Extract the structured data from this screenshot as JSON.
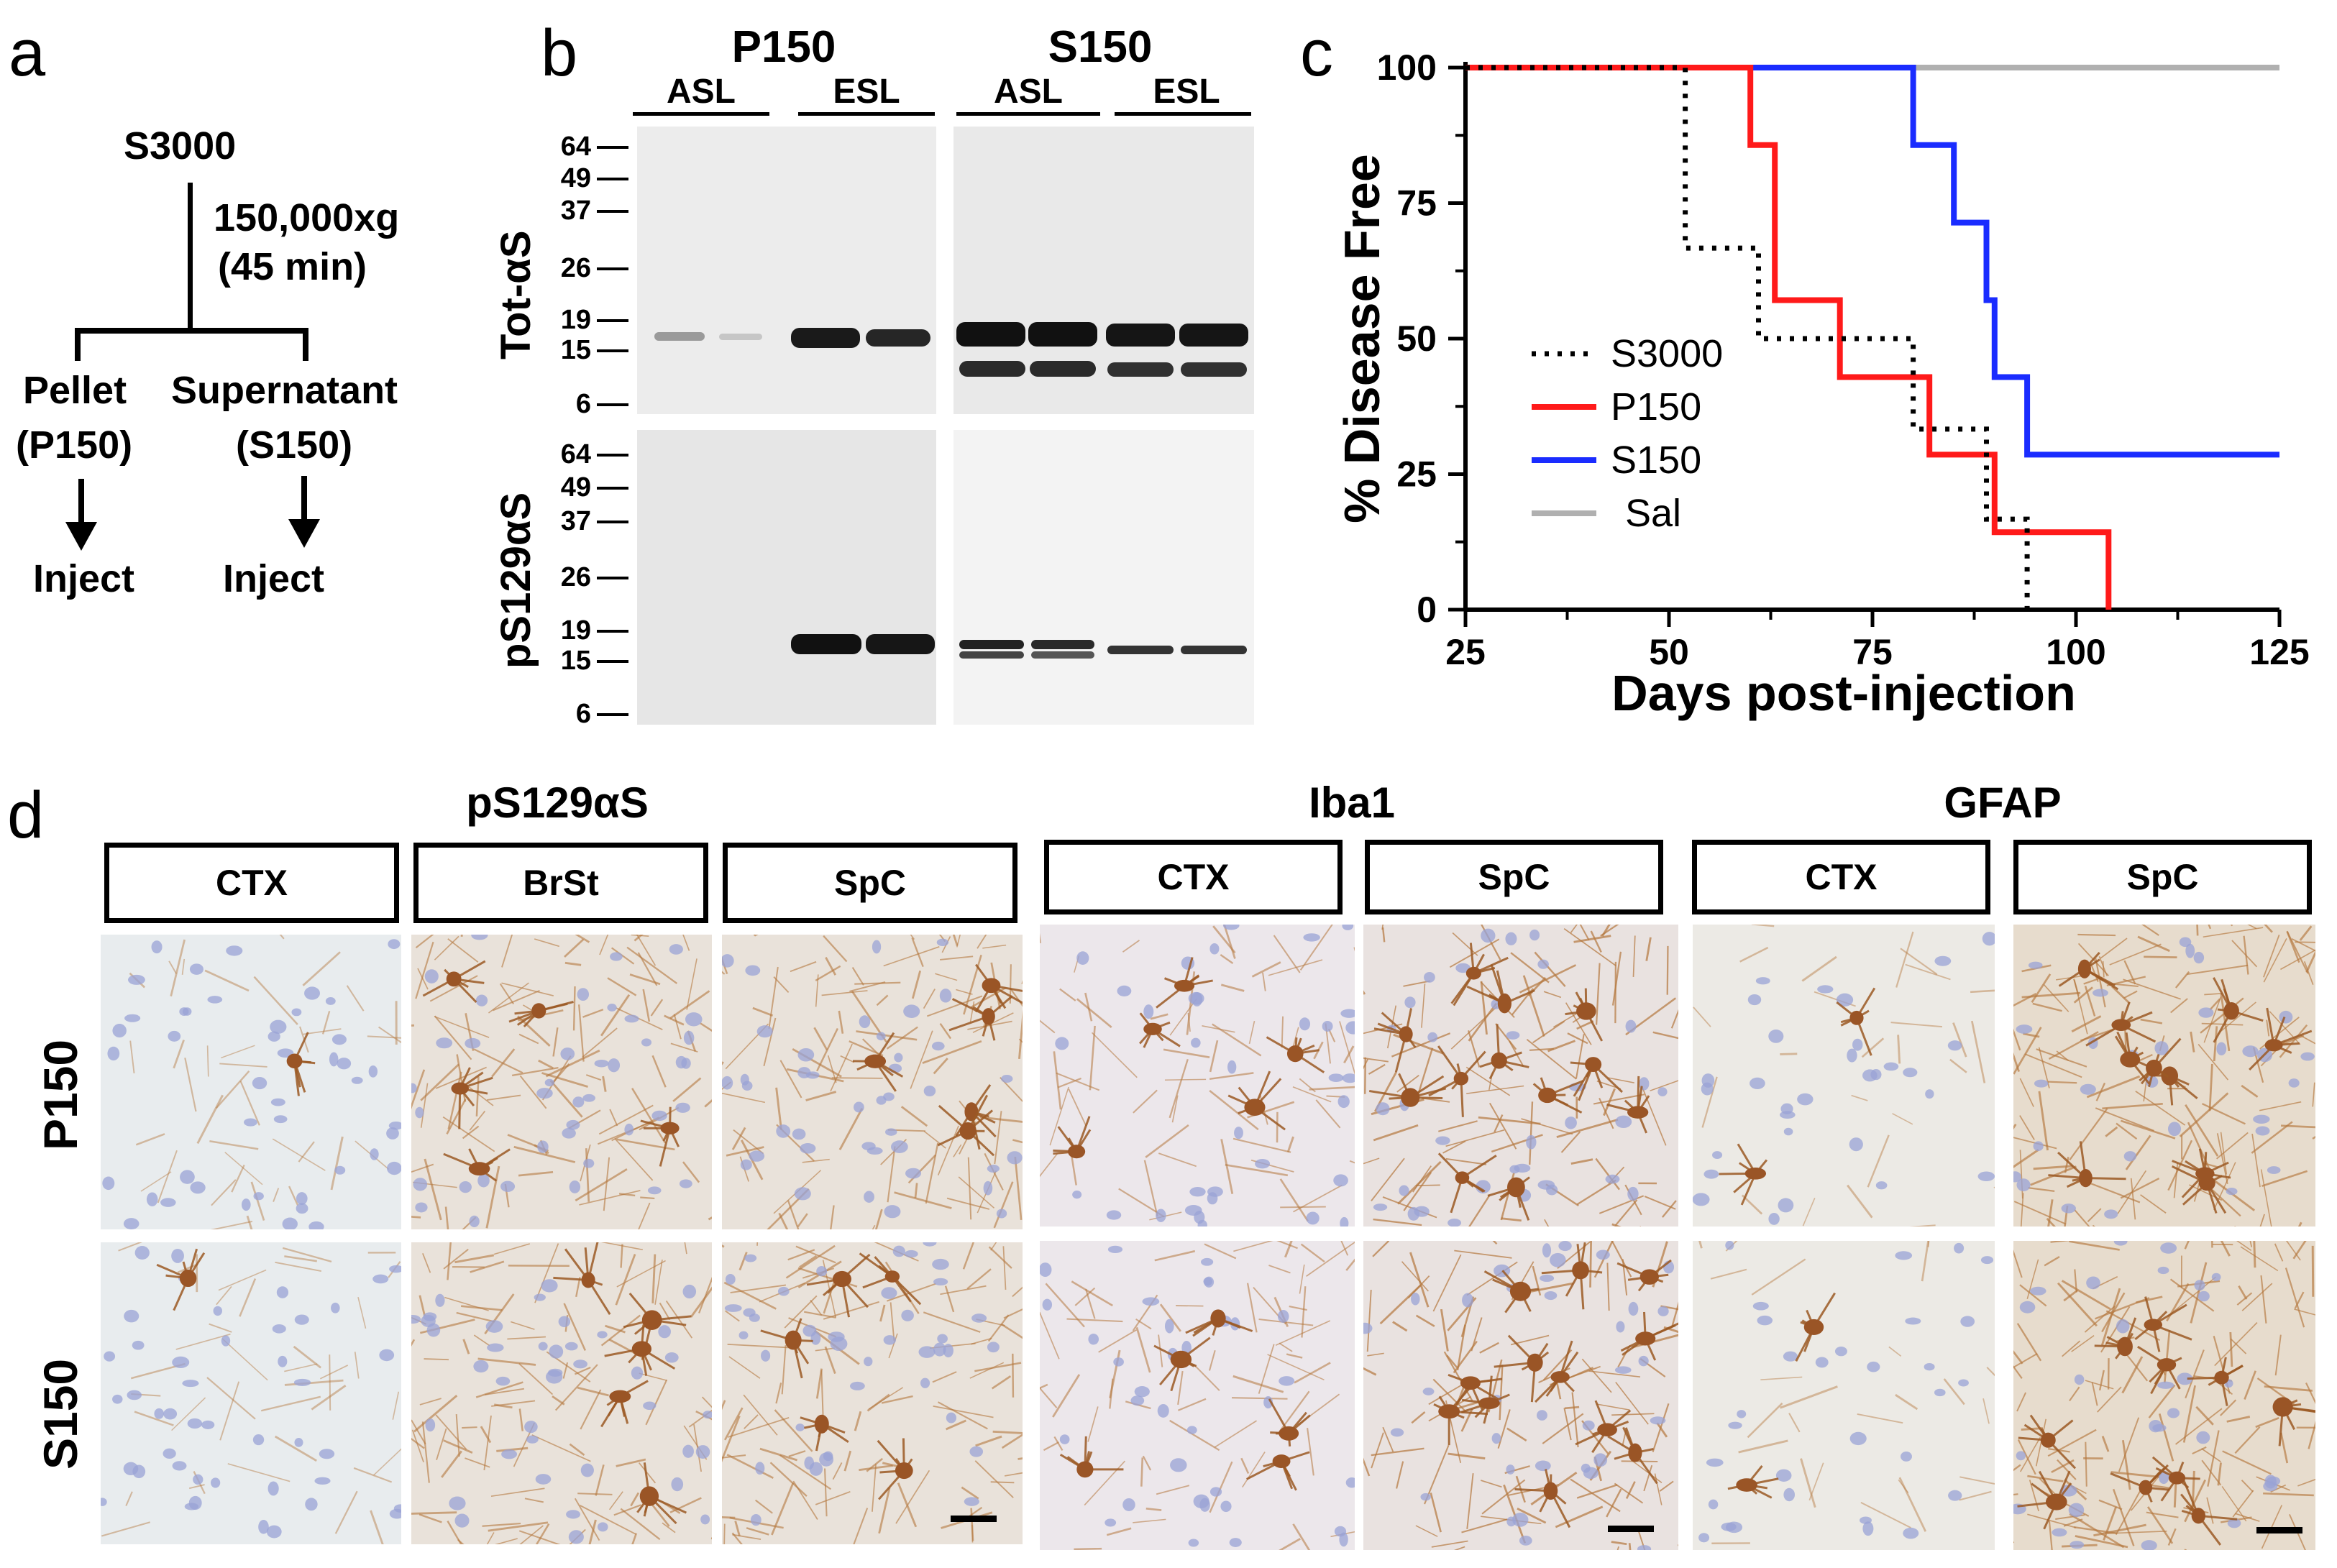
{
  "panel_letters": {
    "a": "a",
    "b": "b",
    "c": "c",
    "d": "d"
  },
  "panel_a": {
    "source": "S3000",
    "spin": "150,000xg",
    "duration": "(45 min)",
    "pellet": "Pellet",
    "pellet_code": "(P150)",
    "supernatant": "Supernatant",
    "supernatant_code": "(S150)",
    "inject_left": "Inject",
    "inject_right": "Inject"
  },
  "panel_b": {
    "groups": [
      "P150",
      "S150"
    ],
    "lanes": [
      "ASL",
      "ESL",
      "ASL",
      "ESL"
    ],
    "row_labels": [
      "Tot-αS",
      "pS129αS"
    ],
    "mw_markers": [
      "64",
      "49",
      "37",
      "26",
      "19",
      "15",
      "6"
    ]
  },
  "chart_data": {
    "type": "line",
    "step": true,
    "xlabel": "Days post-injection",
    "ylabel": "% Disease Free",
    "xlim": [
      25,
      125
    ],
    "ylim": [
      0,
      100
    ],
    "xticks": [
      25,
      50,
      75,
      100,
      125
    ],
    "yticks": [
      0,
      25,
      50,
      75,
      100
    ],
    "legend_position": "center-left",
    "series": [
      {
        "name": "S3000",
        "color": "#000000",
        "style": "dotted",
        "x": [
          25,
          52,
          52,
          61,
          61,
          80,
          80,
          89,
          89,
          94,
          94
        ],
        "y": [
          100,
          100,
          66.7,
          66.7,
          50,
          50,
          33.3,
          33.3,
          16.7,
          16.7,
          0
        ]
      },
      {
        "name": "P150",
        "color": "#ff1a1a",
        "style": "solid",
        "x": [
          25,
          60,
          60,
          63,
          63,
          71,
          71,
          82,
          82,
          90,
          90,
          104,
          104
        ],
        "y": [
          100,
          100,
          85.7,
          85.7,
          57.1,
          57.1,
          42.9,
          42.9,
          28.6,
          28.6,
          14.3,
          14.3,
          0
        ]
      },
      {
        "name": "S150",
        "color": "#1a2cff",
        "style": "solid",
        "x": [
          25,
          80,
          80,
          85,
          85,
          89,
          89,
          90,
          90,
          94,
          94,
          125
        ],
        "y": [
          100,
          100,
          85.7,
          85.7,
          71.4,
          71.4,
          57.1,
          57.1,
          42.9,
          42.9,
          28.6,
          28.6
        ]
      },
      {
        "name": "Sal",
        "color": "#b0b0b0",
        "style": "solid",
        "x": [
          25,
          125
        ],
        "y": [
          100,
          100
        ]
      }
    ]
  },
  "panel_d": {
    "groups": [
      "pS129αS",
      "Iba1",
      "GFAP"
    ],
    "regions": [
      "CTX",
      "BrSt",
      "SpC",
      "CTX",
      "SpC",
      "CTX",
      "SpC"
    ],
    "row_labels": [
      "P150",
      "S150"
    ]
  }
}
